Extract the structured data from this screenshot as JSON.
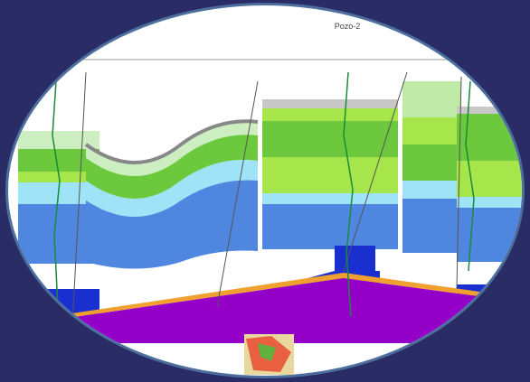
{
  "title": "Pozo-2"
}
